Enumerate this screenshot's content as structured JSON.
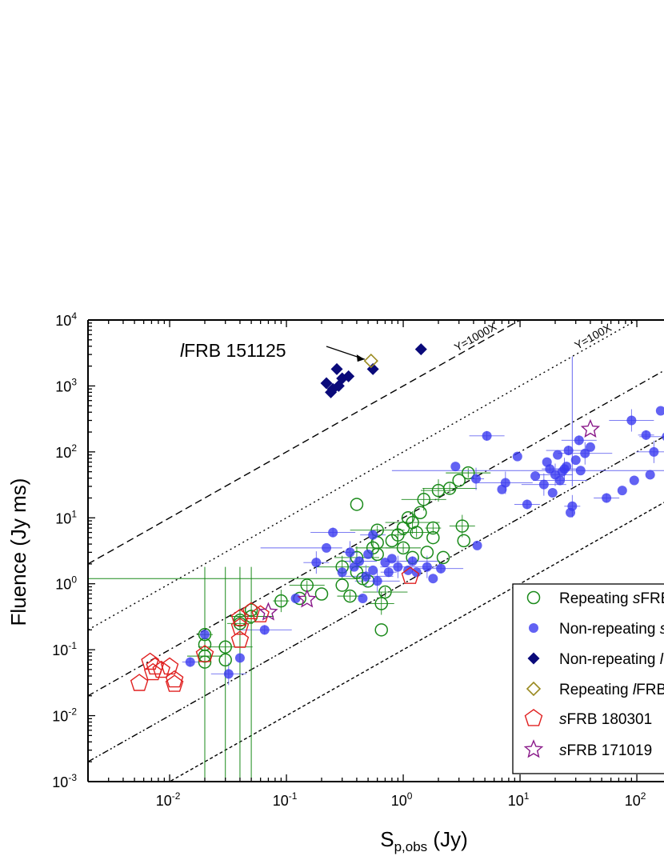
{
  "chart_data": {
    "type": "scatter",
    "title": "",
    "xlabel": "S",
    "xlabel_sub": "p,obs",
    "xlabel_unit": " (Jy)",
    "ylabel": "Fluence (Jy ms)",
    "xscale": "log",
    "yscale": "log",
    "xlim": [
      0.002,
      200
    ],
    "ylim": [
      0.001,
      10000
    ],
    "x_ticks": [
      {
        "value": 0.01,
        "base": "10",
        "exp": "-2"
      },
      {
        "value": 0.1,
        "base": "10",
        "exp": "-1"
      },
      {
        "value": 1,
        "base": "10",
        "exp": "0"
      },
      {
        "value": 10,
        "base": "10",
        "exp": "1"
      },
      {
        "value": 100,
        "base": "10",
        "exp": "2"
      }
    ],
    "y_ticks": [
      {
        "value": 0.001,
        "base": "10",
        "exp": "-3"
      },
      {
        "value": 0.01,
        "base": "10",
        "exp": "-2"
      },
      {
        "value": 0.1,
        "base": "10",
        "exp": "-1"
      },
      {
        "value": 1,
        "base": "10",
        "exp": "0"
      },
      {
        "value": 10,
        "base": "10",
        "exp": "1"
      },
      {
        "value": 100,
        "base": "10",
        "exp": "2"
      },
      {
        "value": 1000,
        "base": "10",
        "exp": "3"
      },
      {
        "value": 10000,
        "base": "10",
        "exp": "4"
      }
    ],
    "legend_position": "bottom-right",
    "reference_lines": [
      {
        "factor": 1000,
        "label": "Y=1000X",
        "style": "dashed",
        "labeled": true
      },
      {
        "factor": 100,
        "label": "Y=100X",
        "style": "dotted",
        "labeled": true
      },
      {
        "factor": 10,
        "label": "",
        "style": "dashdot",
        "labeled": false
      },
      {
        "factor": 1,
        "label": "",
        "style": "dashdotdot",
        "labeled": false
      },
      {
        "factor": 0.1,
        "label": "",
        "style": "shortdash",
        "labeled": false
      }
    ],
    "annotation": {
      "prefix": "l",
      "text": "FRB 151125",
      "x": 0.53,
      "y": 2400
    },
    "series": [
      {
        "name": "Repeating sFRBs",
        "name_prefix": "Repeating ",
        "name_italic": "s",
        "name_suffix": "FRBs",
        "marker": "open-circle",
        "color": "#1a8a1a",
        "points": [
          [
            0.02,
            0.17
          ],
          [
            0.02,
            0.12
          ],
          [
            0.02,
            0.08
          ],
          [
            0.02,
            0.065
          ],
          [
            0.03,
            0.11
          ],
          [
            0.03,
            0.07
          ],
          [
            0.04,
            0.25
          ],
          [
            0.04,
            0.28
          ],
          [
            0.05,
            0.32
          ],
          [
            0.05,
            0.4
          ],
          [
            0.09,
            0.55
          ],
          [
            0.13,
            0.6
          ],
          [
            0.15,
            0.95
          ],
          [
            0.2,
            0.7
          ],
          [
            0.3,
            1.8
          ],
          [
            0.3,
            0.95
          ],
          [
            0.35,
            0.65
          ],
          [
            0.4,
            16
          ],
          [
            0.4,
            2.5
          ],
          [
            0.4,
            1.5
          ],
          [
            0.45,
            1.2
          ],
          [
            0.5,
            1.1
          ],
          [
            0.55,
            3.5
          ],
          [
            0.6,
            4.2
          ],
          [
            0.6,
            6.5
          ],
          [
            0.6,
            2.8
          ],
          [
            0.65,
            0.5
          ],
          [
            0.65,
            0.2
          ],
          [
            0.7,
            0.75
          ],
          [
            0.8,
            4.5
          ],
          [
            0.9,
            5.5
          ],
          [
            1.0,
            7
          ],
          [
            1.0,
            3.5
          ],
          [
            1.1,
            10
          ],
          [
            1.2,
            8.5
          ],
          [
            1.2,
            2.5
          ],
          [
            1.3,
            6
          ],
          [
            1.4,
            12
          ],
          [
            1.5,
            19
          ],
          [
            1.6,
            3
          ],
          [
            1.8,
            7
          ],
          [
            1.8,
            5
          ],
          [
            2.0,
            26
          ],
          [
            2.2,
            2.5
          ],
          [
            2.5,
            28
          ],
          [
            3.0,
            37
          ],
          [
            3.2,
            7.5
          ],
          [
            3.3,
            4.5
          ],
          [
            3.6,
            48
          ]
        ]
      },
      {
        "name": "Non-repeating sFRBs",
        "name_prefix": "Non-repeating ",
        "name_italic": "s",
        "name_suffix": "FRBs",
        "marker": "filled-circle",
        "color": "#3b3bf0",
        "points": [
          [
            0.015,
            0.065
          ],
          [
            0.02,
            0.17
          ],
          [
            0.032,
            0.043
          ],
          [
            0.04,
            0.075
          ],
          [
            0.065,
            0.2
          ],
          [
            0.12,
            0.6
          ],
          [
            0.18,
            2.1
          ],
          [
            0.22,
            3.5
          ],
          [
            0.25,
            6
          ],
          [
            0.3,
            1.5
          ],
          [
            0.35,
            3
          ],
          [
            0.38,
            1.8
          ],
          [
            0.42,
            2.2
          ],
          [
            0.45,
            0.6
          ],
          [
            0.48,
            1.3
          ],
          [
            0.5,
            2.8
          ],
          [
            0.55,
            5.5
          ],
          [
            0.55,
            1.6
          ],
          [
            0.6,
            1.1
          ],
          [
            0.7,
            2.1
          ],
          [
            0.75,
            1.5
          ],
          [
            0.8,
            2.4
          ],
          [
            0.9,
            1.8
          ],
          [
            1.1,
            1.6
          ],
          [
            1.2,
            2.2
          ],
          [
            1.3,
            1.5
          ],
          [
            1.6,
            1.8
          ],
          [
            1.8,
            1.2
          ],
          [
            2.1,
            1.7
          ],
          [
            2.8,
            60
          ],
          [
            4.2,
            39
          ],
          [
            4.3,
            3.8
          ],
          [
            5.2,
            175
          ],
          [
            7.0,
            27
          ],
          [
            7.5,
            34
          ],
          [
            9.5,
            85
          ],
          [
            11.5,
            16
          ],
          [
            13.5,
            43
          ],
          [
            16,
            32
          ],
          [
            17,
            70
          ],
          [
            18,
            55
          ],
          [
            19,
            24
          ],
          [
            20,
            45
          ],
          [
            21,
            90
          ],
          [
            22,
            37
          ],
          [
            23,
            50
          ],
          [
            24,
            55
          ],
          [
            25,
            60
          ],
          [
            26,
            105
          ],
          [
            27,
            12
          ],
          [
            28,
            15
          ],
          [
            30,
            75
          ],
          [
            32,
            150
          ],
          [
            33,
            52
          ],
          [
            36,
            95
          ],
          [
            40,
            118
          ],
          [
            55,
            20
          ],
          [
            75,
            26
          ],
          [
            90,
            300
          ],
          [
            95,
            37
          ],
          [
            120,
            180
          ],
          [
            130,
            45
          ],
          [
            140,
            100
          ],
          [
            160,
            420
          ],
          [
            180,
            170
          ]
        ]
      },
      {
        "name": "Non-repeating lFRBs",
        "name_prefix": "Non-repeating ",
        "name_italic": "l",
        "name_suffix": "FRBs",
        "marker": "filled-diamond",
        "color": "#0a0a7a",
        "points": [
          [
            0.22,
            1100
          ],
          [
            0.24,
            800
          ],
          [
            0.25,
            900
          ],
          [
            0.27,
            1800
          ],
          [
            0.28,
            1000
          ],
          [
            0.3,
            1300
          ],
          [
            0.34,
            1400
          ],
          [
            0.55,
            1800
          ],
          [
            1.42,
            3600
          ]
        ]
      },
      {
        "name": "Repeating lFRB",
        "name_prefix": "Repeating ",
        "name_italic": "l",
        "name_suffix": "FRB",
        "marker": "open-diamond",
        "color": "#9a8a20",
        "points": [
          [
            0.53,
            2400
          ]
        ]
      },
      {
        "name": "sFRB 180301",
        "name_prefix": "",
        "name_italic": "s",
        "name_suffix": "FRB 180301",
        "marker": "open-pentagon",
        "color": "#e02020",
        "points": [
          [
            0.0055,
            0.031
          ],
          [
            0.0068,
            0.065
          ],
          [
            0.0072,
            0.045
          ],
          [
            0.0075,
            0.055
          ],
          [
            0.0085,
            0.049
          ],
          [
            0.01,
            0.055
          ],
          [
            0.011,
            0.035
          ],
          [
            0.011,
            0.03
          ],
          [
            0.02,
            0.085
          ],
          [
            0.04,
            0.14
          ],
          [
            0.04,
            0.22
          ],
          [
            0.04,
            0.3
          ],
          [
            0.05,
            0.38
          ],
          [
            0.06,
            0.34
          ],
          [
            1.15,
            1.3
          ]
        ]
      },
      {
        "name": "sFRB 171019",
        "name_prefix": "",
        "name_italic": "s",
        "name_suffix": "FRB 171019",
        "marker": "open-star",
        "color": "#8a1a8a",
        "points": [
          [
            0.07,
            0.37
          ],
          [
            0.15,
            0.58
          ],
          [
            40,
            220
          ]
        ]
      }
    ]
  }
}
